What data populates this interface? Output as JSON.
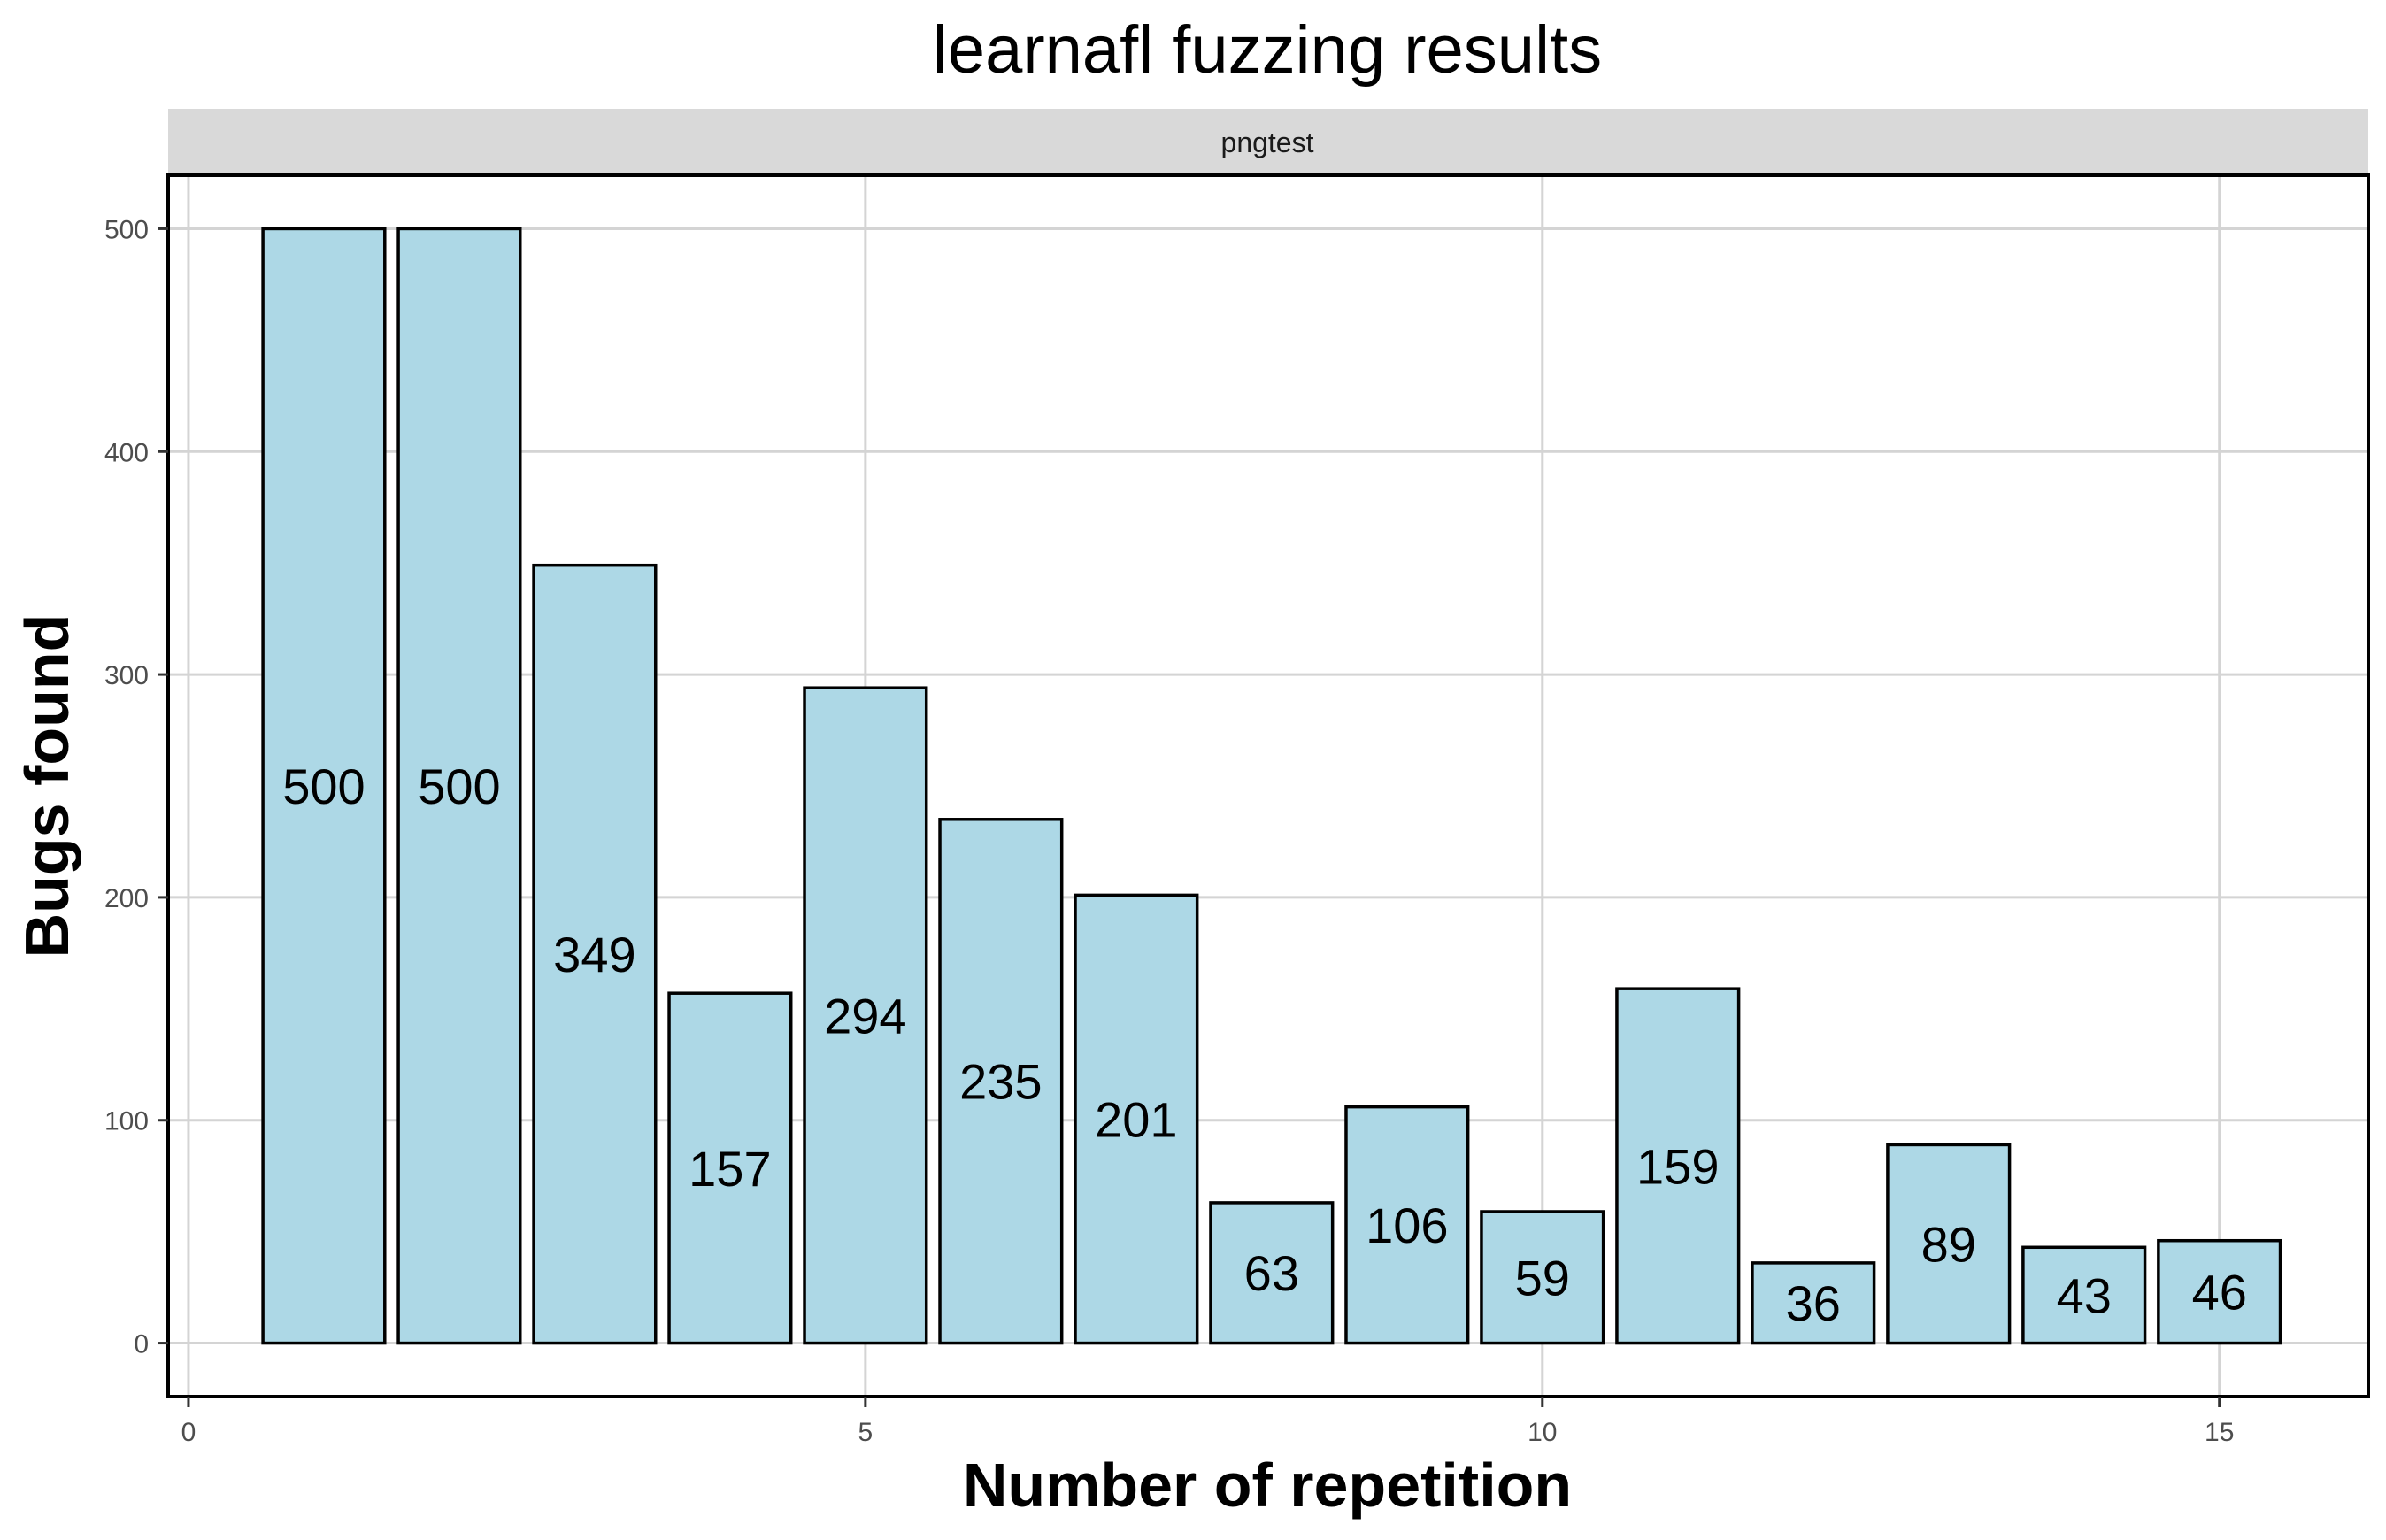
{
  "chart_data": {
    "type": "bar",
    "title": "learnafl fuzzing results",
    "facet": "pngtest",
    "xlabel": "Number of repetition",
    "ylabel": "Bugs found",
    "x": [
      1,
      2,
      3,
      4,
      5,
      6,
      7,
      8,
      9,
      10,
      11,
      12,
      13,
      14,
      15
    ],
    "values": [
      500,
      500,
      349,
      157,
      294,
      235,
      201,
      63,
      106,
      59,
      159,
      36,
      89,
      43,
      46
    ],
    "labels": [
      "500",
      "500",
      "349",
      "157",
      "294",
      "235",
      "201",
      "63",
      "106",
      "59",
      "159",
      "36",
      "89",
      "43",
      "46"
    ],
    "xticks": [
      0,
      5,
      10,
      15
    ],
    "xtick_labels": [
      "0",
      "5",
      "10",
      "15"
    ],
    "yticks": [
      0,
      100,
      200,
      300,
      400,
      500
    ],
    "ytick_labels": [
      "0",
      "100",
      "200",
      "300",
      "400",
      "500"
    ],
    "xlim": [
      -0.15,
      16.1
    ],
    "ylim": [
      -24,
      524
    ],
    "grid": true,
    "legend": "none",
    "colors": {
      "bar_fill": "#add8e6",
      "bar_stroke": "#000000",
      "grid": "#d4d4d4",
      "strip": "#d9d9d9"
    }
  }
}
